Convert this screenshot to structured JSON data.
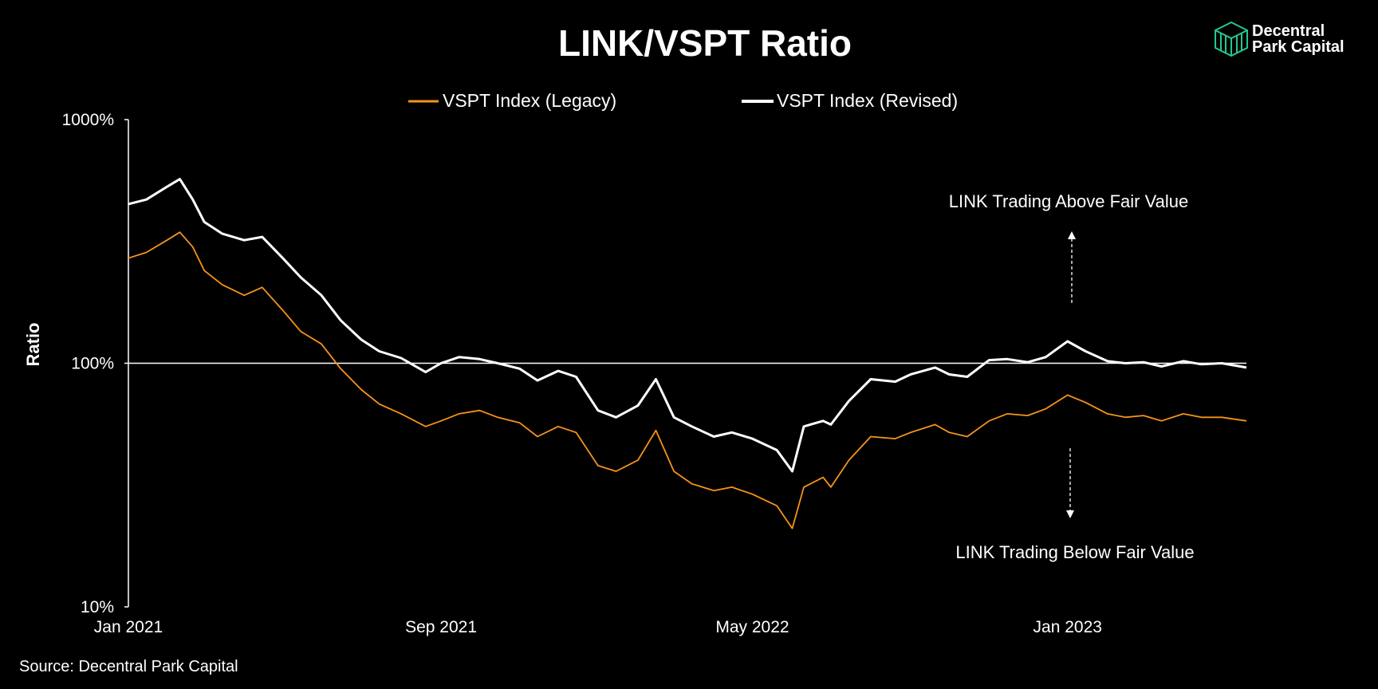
{
  "logo": {
    "line1": "Decentral",
    "line2": "Park Capital",
    "color": "#23c78f"
  },
  "source": "Source: Decentral Park Capital",
  "chart_data": {
    "type": "line",
    "title": "LINK/VSPT Ratio",
    "ylabel": "Ratio",
    "xlabel": "",
    "y_scale": "log",
    "ylim": [
      10,
      1000
    ],
    "y_ticks": [
      10,
      100,
      1000
    ],
    "y_tick_labels": [
      "10%",
      "100%",
      "1000%"
    ],
    "x_range": [
      "2021-01-01",
      "2023-05-20"
    ],
    "x_ticks": [
      "2021-01-01",
      "2021-09-01",
      "2022-05-01",
      "2023-01-01"
    ],
    "x_tick_labels": [
      "Jan 2021",
      "Sep 2021",
      "May 2022",
      "Jan 2023"
    ],
    "reference_line": {
      "y": 100
    },
    "legend": "top-center",
    "annotations": [
      {
        "text": "LINK Trading Above Fair Value",
        "arrow": "up"
      },
      {
        "text": "LINK Trading Below Fair Value",
        "arrow": "down"
      }
    ],
    "series": [
      {
        "name": "VSPT Index (Legacy)",
        "color": "#f7931a",
        "points": [
          [
            "2021-01-01",
            270
          ],
          [
            "2021-01-15",
            285
          ],
          [
            "2021-01-31",
            320
          ],
          [
            "2021-02-10",
            345
          ],
          [
            "2021-02-20",
            300
          ],
          [
            "2021-03-01",
            240
          ],
          [
            "2021-03-15",
            210
          ],
          [
            "2021-04-01",
            190
          ],
          [
            "2021-04-15",
            205
          ],
          [
            "2021-05-01",
            165
          ],
          [
            "2021-05-15",
            135
          ],
          [
            "2021-05-31",
            120
          ],
          [
            "2021-06-15",
            95
          ],
          [
            "2021-07-01",
            78
          ],
          [
            "2021-07-15",
            68
          ],
          [
            "2021-08-01",
            62
          ],
          [
            "2021-08-20",
            55
          ],
          [
            "2021-09-01",
            58
          ],
          [
            "2021-09-15",
            62
          ],
          [
            "2021-10-01",
            64
          ],
          [
            "2021-10-15",
            60
          ],
          [
            "2021-11-01",
            57
          ],
          [
            "2021-11-15",
            50
          ],
          [
            "2021-12-01",
            55
          ],
          [
            "2021-12-15",
            52
          ],
          [
            "2022-01-01",
            38
          ],
          [
            "2022-01-15",
            36
          ],
          [
            "2022-02-01",
            40
          ],
          [
            "2022-02-15",
            53
          ],
          [
            "2022-03-01",
            36
          ],
          [
            "2022-03-15",
            32
          ],
          [
            "2022-04-01",
            30
          ],
          [
            "2022-04-15",
            31
          ],
          [
            "2022-05-01",
            29
          ],
          [
            "2022-05-20",
            26
          ],
          [
            "2022-06-01",
            21
          ],
          [
            "2022-06-10",
            31
          ],
          [
            "2022-06-25",
            34
          ],
          [
            "2022-07-01",
            31
          ],
          [
            "2022-07-15",
            40
          ],
          [
            "2022-08-01",
            50
          ],
          [
            "2022-08-20",
            49
          ],
          [
            "2022-09-01",
            52
          ],
          [
            "2022-09-20",
            56
          ],
          [
            "2022-10-01",
            52
          ],
          [
            "2022-10-15",
            50
          ],
          [
            "2022-11-01",
            58
          ],
          [
            "2022-11-15",
            62
          ],
          [
            "2022-12-01",
            61
          ],
          [
            "2022-12-15",
            65
          ],
          [
            "2023-01-01",
            74
          ],
          [
            "2023-01-15",
            69
          ],
          [
            "2023-02-01",
            62
          ],
          [
            "2023-02-15",
            60
          ],
          [
            "2023-03-01",
            61
          ],
          [
            "2023-03-15",
            58
          ],
          [
            "2023-04-01",
            62
          ],
          [
            "2023-04-15",
            60
          ],
          [
            "2023-05-01",
            60
          ],
          [
            "2023-05-20",
            58
          ]
        ]
      },
      {
        "name": "VSPT Index (Revised)",
        "color": "#ffffff",
        "points": [
          [
            "2021-01-01",
            450
          ],
          [
            "2021-01-15",
            470
          ],
          [
            "2021-01-31",
            530
          ],
          [
            "2021-02-10",
            570
          ],
          [
            "2021-02-20",
            470
          ],
          [
            "2021-03-01",
            380
          ],
          [
            "2021-03-15",
            340
          ],
          [
            "2021-04-01",
            320
          ],
          [
            "2021-04-15",
            330
          ],
          [
            "2021-05-01",
            270
          ],
          [
            "2021-05-15",
            225
          ],
          [
            "2021-05-31",
            190
          ],
          [
            "2021-06-15",
            150
          ],
          [
            "2021-07-01",
            125
          ],
          [
            "2021-07-15",
            112
          ],
          [
            "2021-08-01",
            105
          ],
          [
            "2021-08-20",
            92
          ],
          [
            "2021-09-01",
            100
          ],
          [
            "2021-09-15",
            106
          ],
          [
            "2021-10-01",
            104
          ],
          [
            "2021-10-15",
            100
          ],
          [
            "2021-11-01",
            95
          ],
          [
            "2021-11-15",
            85
          ],
          [
            "2021-12-01",
            93
          ],
          [
            "2021-12-15",
            88
          ],
          [
            "2022-01-01",
            64
          ],
          [
            "2022-01-15",
            60
          ],
          [
            "2022-02-01",
            67
          ],
          [
            "2022-02-15",
            86
          ],
          [
            "2022-03-01",
            60
          ],
          [
            "2022-03-15",
            55
          ],
          [
            "2022-04-01",
            50
          ],
          [
            "2022-04-15",
            52
          ],
          [
            "2022-05-01",
            49
          ],
          [
            "2022-05-20",
            44
          ],
          [
            "2022-06-01",
            36
          ],
          [
            "2022-06-10",
            55
          ],
          [
            "2022-06-25",
            58
          ],
          [
            "2022-07-01",
            56
          ],
          [
            "2022-07-15",
            70
          ],
          [
            "2022-08-01",
            86
          ],
          [
            "2022-08-20",
            84
          ],
          [
            "2022-09-01",
            90
          ],
          [
            "2022-09-20",
            96
          ],
          [
            "2022-10-01",
            90
          ],
          [
            "2022-10-15",
            88
          ],
          [
            "2022-11-01",
            103
          ],
          [
            "2022-11-15",
            104
          ],
          [
            "2022-12-01",
            101
          ],
          [
            "2022-12-15",
            106
          ],
          [
            "2023-01-01",
            123
          ],
          [
            "2023-01-15",
            112
          ],
          [
            "2023-02-01",
            102
          ],
          [
            "2023-02-15",
            100
          ],
          [
            "2023-03-01",
            101
          ],
          [
            "2023-03-15",
            97
          ],
          [
            "2023-04-01",
            102
          ],
          [
            "2023-04-15",
            99
          ],
          [
            "2023-05-01",
            100
          ],
          [
            "2023-05-20",
            96
          ]
        ]
      }
    ]
  }
}
